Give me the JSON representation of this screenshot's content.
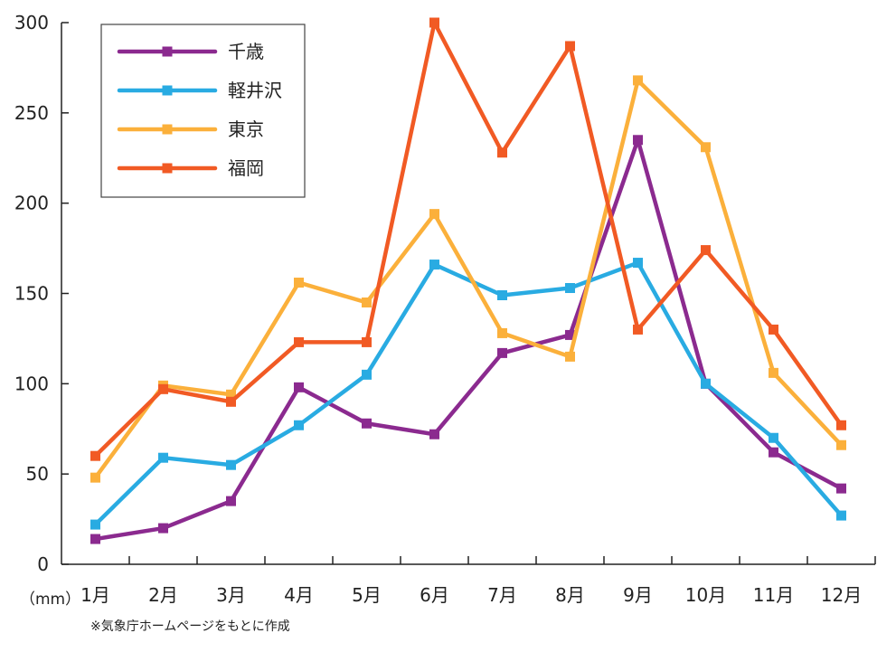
{
  "chart_data": {
    "type": "line",
    "title": "",
    "xlabel": "",
    "ylabel": "",
    "unit_label": "（mm）",
    "categories": [
      "1月",
      "2月",
      "3月",
      "4月",
      "5月",
      "6月",
      "7月",
      "8月",
      "9月",
      "10月",
      "11月",
      "12月"
    ],
    "ylim": [
      0,
      300
    ],
    "yticks": [
      0,
      50,
      100,
      150,
      200,
      250,
      300
    ],
    "grid": false,
    "legend_position": "top-left",
    "series": [
      {
        "name": "千歳",
        "color": "#8b2a8f",
        "values": [
          14,
          20,
          35,
          98,
          78,
          72,
          117,
          127,
          235,
          100,
          62,
          42
        ]
      },
      {
        "name": "軽井沢",
        "color": "#29abe2",
        "values": [
          22,
          59,
          55,
          77,
          105,
          166,
          149,
          153,
          167,
          100,
          70,
          27
        ]
      },
      {
        "name": "東京",
        "color": "#fbb03b",
        "values": [
          48,
          99,
          94,
          156,
          145,
          194,
          128,
          115,
          268,
          231,
          106,
          66
        ]
      },
      {
        "name": "福岡",
        "color": "#f15a24",
        "values": [
          60,
          97,
          90,
          123,
          123,
          300,
          228,
          287,
          130,
          174,
          130,
          77
        ]
      }
    ]
  },
  "source_note": "※気象庁ホームページをもとに作成"
}
